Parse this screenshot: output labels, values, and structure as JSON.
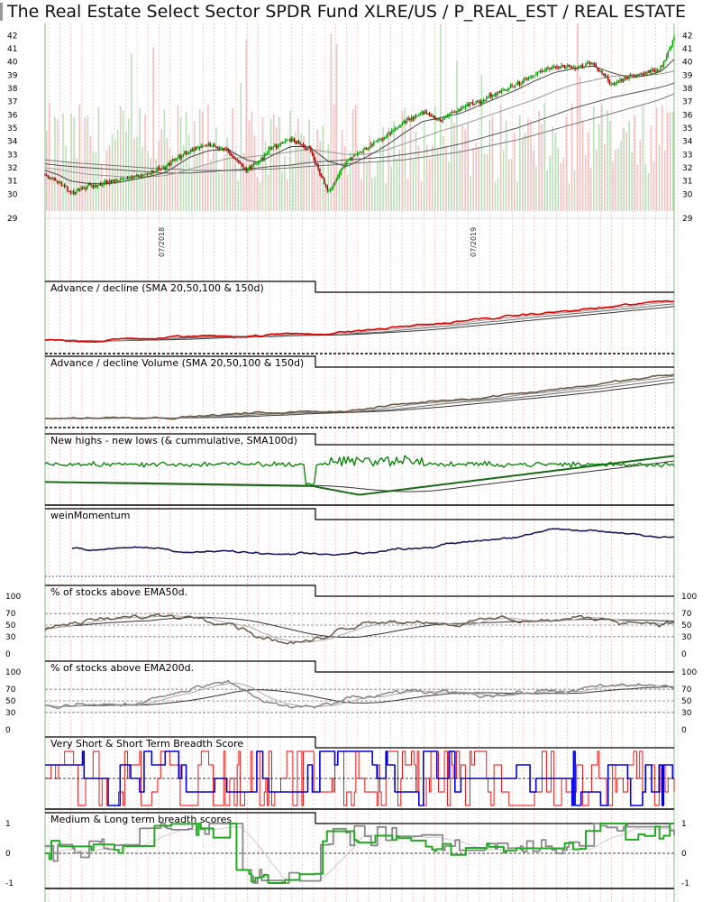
{
  "chart_data": {
    "type": "line",
    "title": "The Real Estate Select Sector SPDR Fund XLRE/US / P_REAL_EST / REAL ESTATE",
    "date_labels": [
      "07/2018",
      "07/2019"
    ],
    "colors": {
      "price_up": "#00a000",
      "price_down": "#a00000",
      "ad_line": "#e00000",
      "volume_line": "#6b5a44",
      "hl_line": "#008000",
      "momentum": "#1a1a5a",
      "ema_line": "#6b5a44",
      "ema200_line": "#888888",
      "vs_score": "#0000dd",
      "short_score": "#ee0000",
      "ml_green": "#22aa22",
      "ml_gray": "#888888"
    },
    "panels": [
      {
        "id": "price",
        "title": "",
        "y_ticks": [
          "42",
          "41",
          "40",
          "39",
          "38",
          "37",
          "36",
          "35",
          "34",
          "33",
          "32",
          "31",
          "30",
          "29"
        ],
        "y_range": [
          29.0,
          42.5
        ],
        "x": [
          0,
          0.02,
          0.04,
          0.07,
          0.1,
          0.13,
          0.16,
          0.19,
          0.21,
          0.23,
          0.26,
          0.29,
          0.32,
          0.34,
          0.36,
          0.39,
          0.42,
          0.45,
          0.48,
          0.51,
          0.54,
          0.57,
          0.6,
          0.63,
          0.66,
          0.69,
          0.72,
          0.75,
          0.78,
          0.81,
          0.84,
          0.87,
          0.9,
          0.93,
          0.96,
          0.98,
          1.0
        ],
        "close": [
          31.5,
          31.0,
          30.2,
          30.6,
          30.9,
          31.2,
          31.5,
          32.0,
          32.8,
          33.3,
          33.8,
          33.3,
          31.8,
          32.5,
          33.5,
          34.2,
          33.4,
          30.2,
          32.5,
          33.5,
          34.3,
          35.5,
          36.2,
          35.6,
          36.5,
          37.0,
          37.7,
          38.3,
          39.1,
          39.7,
          39.5,
          39.9,
          38.3,
          38.9,
          39.2,
          39.5,
          41.8
        ],
        "sma_fast": [
          31.8,
          31.5,
          31.0,
          30.8,
          30.8,
          31.0,
          31.3,
          31.6,
          32.2,
          32.8,
          33.3,
          33.4,
          32.6,
          32.4,
          32.9,
          33.6,
          33.6,
          32.5,
          32.1,
          32.8,
          33.6,
          34.6,
          35.5,
          35.8,
          36.1,
          36.7,
          37.3,
          37.9,
          38.6,
          39.2,
          39.5,
          39.7,
          39.2,
          38.8,
          39.0,
          39.3,
          40.2
        ],
        "sma_slow1": [
          32.0,
          31.9,
          31.7,
          31.5,
          31.4,
          31.3,
          31.3,
          31.4,
          31.6,
          31.9,
          32.3,
          32.7,
          32.8,
          32.9,
          33.0,
          33.2,
          33.4,
          33.2,
          33.0,
          33.0,
          33.3,
          33.8,
          34.3,
          34.8,
          35.2,
          35.7,
          36.2,
          36.7,
          37.2,
          37.8,
          38.3,
          38.6,
          38.9,
          39.0,
          39.0,
          39.1,
          39.3
        ],
        "sma_slow2": [
          32.3,
          32.2,
          32.1,
          32.0,
          31.9,
          31.8,
          31.7,
          31.6,
          31.6,
          31.6,
          31.7,
          31.8,
          31.9,
          32.0,
          32.1,
          32.2,
          32.4,
          32.5,
          32.6,
          32.7,
          32.8,
          33.0,
          33.2,
          33.5,
          33.8,
          34.2,
          34.6,
          35.0,
          35.5,
          36.0,
          36.5,
          36.9,
          37.3,
          37.6,
          37.9,
          38.1,
          38.4
        ],
        "sma_slow3": [
          32.6,
          32.5,
          32.4,
          32.3,
          32.2,
          32.1,
          32.0,
          31.9,
          31.9,
          31.8,
          31.8,
          31.8,
          31.8,
          31.9,
          31.9,
          32.0,
          32.1,
          32.2,
          32.3,
          32.4,
          32.5,
          32.6,
          32.8,
          33.0,
          33.2,
          33.5,
          33.8,
          34.1,
          34.5,
          34.9,
          35.3,
          35.7,
          36.1,
          36.5,
          36.9,
          37.2,
          37.6
        ]
      },
      {
        "id": "ad",
        "title": "Advance / decline (SMA 20,50,100 & 150d)"
      },
      {
        "id": "adv",
        "title": "Advance / decline Volume (SMA 20,50,100 & 150d)"
      },
      {
        "id": "hl",
        "title": "New highs - new lows (& cummulative, SMA100d)"
      },
      {
        "id": "wm",
        "title": "weinMomentum"
      },
      {
        "id": "ema50",
        "title": "% of stocks above EMA50d.",
        "y_ticks": [
          "100",
          "70",
          "50",
          "30",
          "0"
        ]
      },
      {
        "id": "ema200",
        "title": "% of stocks above EMA200d.",
        "y_ticks": [
          "100",
          "70",
          "50",
          "30",
          "0"
        ]
      },
      {
        "id": "vs",
        "title": "Very Short & Short Term Breadth Score"
      },
      {
        "id": "ml",
        "title": "Medium & Long term breadth scores",
        "y_ticks": [
          "1",
          "0",
          "-1"
        ]
      }
    ]
  }
}
